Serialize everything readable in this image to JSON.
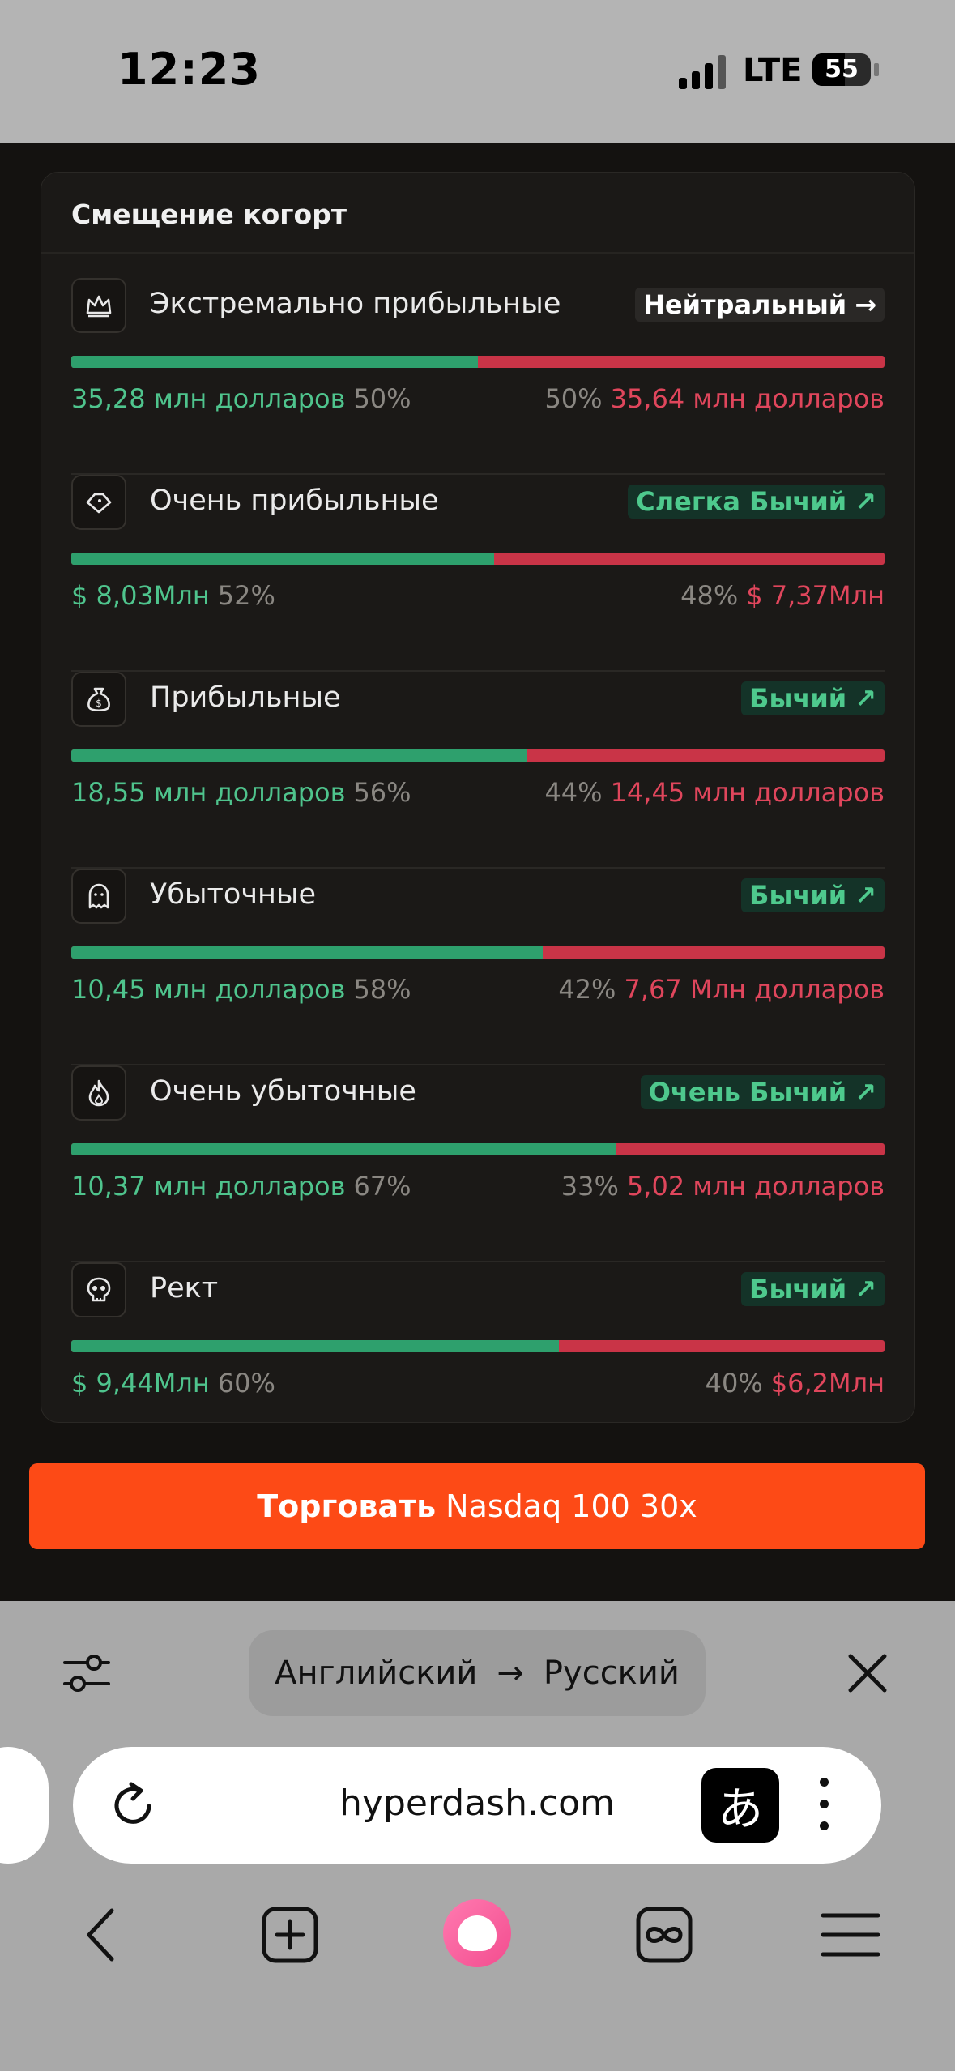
{
  "status_bar": {
    "time": "12:23",
    "network": "LTE",
    "battery_level": "55"
  },
  "card": {
    "title": "Смещение когорт",
    "rows": [
      {
        "name": "Экстремально прибыльные",
        "icon": "crown-icon",
        "badge": "Нейтральный",
        "badge_arrow": "→",
        "badge_style": "neutral",
        "long_fraction": 0.5,
        "long_value": "35,28 млн долларов",
        "long_pct": "50%",
        "short_pct": "50%",
        "short_value": "35,64 млн долларов"
      },
      {
        "name": "Очень прибыльные",
        "icon": "diamond-icon",
        "badge": "Слегка Бычий",
        "badge_arrow": "↗",
        "badge_style": "bull",
        "long_fraction": 0.52,
        "long_value": "$ 8,03Млн",
        "long_pct": "52%",
        "short_pct": "48%",
        "short_value": "$ 7,37Млн"
      },
      {
        "name": "Прибыльные",
        "icon": "money-bag-icon",
        "badge": "Бычий",
        "badge_arrow": "↗",
        "badge_style": "bull",
        "long_fraction": 0.56,
        "long_value": "18,55 млн долларов",
        "long_pct": "56%",
        "short_pct": "44%",
        "short_value": "14,45 млн долларов"
      },
      {
        "name": "Убыточные",
        "icon": "ghost-icon",
        "badge": "Бычий",
        "badge_arrow": "↗",
        "badge_style": "bull",
        "long_fraction": 0.58,
        "long_value": "10,45 млн долларов",
        "long_pct": "58%",
        "short_pct": "42%",
        "short_value": "7,67 Млн долларов"
      },
      {
        "name": "Очень убыточные",
        "icon": "flame-icon",
        "badge": "Очень Бычий",
        "badge_arrow": "↗",
        "badge_style": "bull",
        "long_fraction": 0.67,
        "long_value": "10,37 млн долларов",
        "long_pct": "67%",
        "short_pct": "33%",
        "short_value": "5,02 млн долларов"
      },
      {
        "name": "Рект",
        "icon": "skull-icon",
        "badge": "Бычий",
        "badge_arrow": "↗",
        "badge_style": "bull",
        "long_fraction": 0.6,
        "long_value": "$ 9,44Млн",
        "long_pct": "60%",
        "short_pct": "40%",
        "short_value": "$6,2Млн"
      }
    ]
  },
  "trade_button": {
    "bold": "Торговать",
    "rest": "Nasdaq 100 30x"
  },
  "translate_bar": {
    "from": "Английский",
    "arrow": "→",
    "to": "Русский"
  },
  "browser": {
    "url": "hyperdash.com",
    "translate_glyph": "あ"
  },
  "colors": {
    "long": "#2ea06d",
    "short": "#c93447",
    "trade_button": "#fd4a16",
    "page_bg": "#141210"
  }
}
